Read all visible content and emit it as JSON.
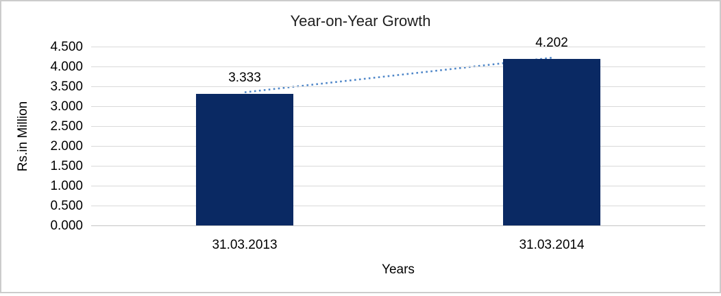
{
  "chart_data": {
    "type": "bar",
    "title": "Year-on-Year Growth",
    "xlabel": "Years",
    "ylabel": "Rs.in Million",
    "categories": [
      "31.03.2013",
      "31.03.2014"
    ],
    "values": [
      3.333,
      4.202
    ],
    "data_labels": [
      "3.333",
      "4.202"
    ],
    "ylim": [
      0,
      4.5
    ],
    "ytick_step": 0.5,
    "ytick_labels": [
      "0.000",
      "0.500",
      "1.000",
      "1.500",
      "2.000",
      "2.500",
      "3.000",
      "3.500",
      "4.000",
      "4.500"
    ],
    "grid": true,
    "legend": false,
    "trendline": {
      "style": "dotted",
      "connects": [
        "bar-top-31.03.2013",
        "bar-top-31.03.2014"
      ]
    }
  },
  "colors": {
    "bar": "#0a2963",
    "trendline": "#4e86c8",
    "gridline": "#d9d9d9",
    "axis_line": "#c3c3c3",
    "text": "#000000",
    "border": "#cccccc",
    "background": "#ffffff"
  }
}
